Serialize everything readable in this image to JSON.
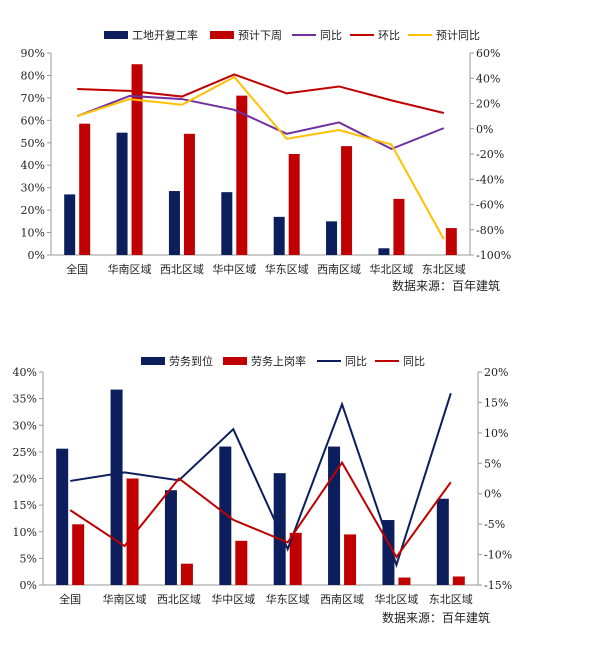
{
  "chart_data": [
    {
      "type": "bar+line",
      "categories": [
        "全国",
        "华南区域",
        "西北区域",
        "华中区域",
        "华东区域",
        "西南区域",
        "华北区域",
        "东北区域"
      ],
      "y_left": {
        "min": 0,
        "max": 90,
        "step": 10,
        "ticks": [
          "0%",
          "10%",
          "20%",
          "30%",
          "40%",
          "50%",
          "60%",
          "70%",
          "80%",
          "90%"
        ]
      },
      "y_right": {
        "min": -100,
        "max": 60,
        "step": 20,
        "ticks": [
          "-100%",
          "-80%",
          "-60%",
          "-40%",
          "-20%",
          "0%",
          "20%",
          "40%",
          "60%"
        ]
      },
      "legend_position": "top",
      "grid": false,
      "series": [
        {
          "name": "工地开复工率",
          "kind": "bar",
          "axis": "left",
          "color": "#0c1f5c",
          "values": [
            27,
            54.5,
            28.5,
            28,
            17,
            15,
            3,
            null
          ]
        },
        {
          "name": "预计下周",
          "kind": "bar",
          "axis": "left",
          "color": "#c00000",
          "values": [
            58.5,
            85,
            54,
            71,
            45,
            48.5,
            25,
            12
          ]
        },
        {
          "name": "同比",
          "kind": "line",
          "axis": "right",
          "color": "#7030a0",
          "values": [
            10,
            26,
            23.5,
            15,
            -4,
            5,
            -16,
            0.5
          ]
        },
        {
          "name": "环比",
          "kind": "line",
          "axis": "right",
          "color": "#c00000",
          "values": [
            31.5,
            30,
            25.5,
            43,
            28,
            33.5,
            22.5,
            12.5
          ]
        },
        {
          "name": "预计同比",
          "kind": "line",
          "axis": "right",
          "color": "#ffc000",
          "values": [
            10,
            23.5,
            19,
            41,
            -8,
            -1,
            -12.5,
            -87.5
          ]
        }
      ],
      "source": "数据来源：百年建筑"
    },
    {
      "type": "bar+line",
      "categories": [
        "全国",
        "华南区域",
        "西北区域",
        "华中区域",
        "华东区域",
        "西南区域",
        "华北区域",
        "东北区域"
      ],
      "y_left": {
        "min": 0,
        "max": 40,
        "step": 5,
        "ticks": [
          "0%",
          "5%",
          "10%",
          "15%",
          "20%",
          "25%",
          "30%",
          "35%",
          "40%"
        ]
      },
      "y_right": {
        "min": -15,
        "max": 20,
        "step": 5,
        "ticks": [
          "-15%",
          "-10%",
          "-5%",
          "0%",
          "5%",
          "10%",
          "15%",
          "20%"
        ]
      },
      "legend_position": "top",
      "grid": false,
      "series": [
        {
          "name": "劳务到位",
          "kind": "bar",
          "axis": "left",
          "color": "#0c1f5c",
          "values": [
            25.6,
            36.7,
            17.8,
            26,
            21,
            26,
            12.2,
            16.2
          ]
        },
        {
          "name": "劳务上岗率",
          "kind": "bar",
          "axis": "left",
          "color": "#c00000",
          "values": [
            11.4,
            20,
            4,
            8.3,
            9.8,
            9.5,
            1.4,
            1.6
          ]
        },
        {
          "name": "同比",
          "kind": "line",
          "axis": "right",
          "color": "#0c1f5c",
          "values": [
            2.1,
            3.5,
            2.2,
            10.6,
            -9.1,
            14.7,
            -11.7,
            16.5
          ]
        },
        {
          "name": "同比",
          "kind": "line",
          "axis": "right",
          "color": "#c00000",
          "values": [
            -2.7,
            -8.6,
            2.5,
            -4.3,
            -8,
            5.1,
            -10.4,
            1.9
          ]
        }
      ],
      "source": "数据来源：百年建筑"
    }
  ]
}
